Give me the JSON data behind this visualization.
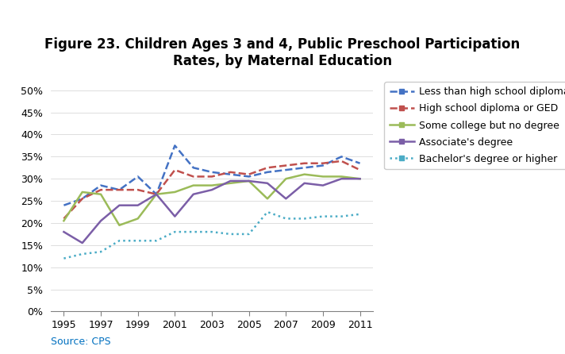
{
  "title": "Figure 23. Children Ages 3 and 4, Public Preschool Participation\nRates, by Maternal Education",
  "source": "Source: CPS",
  "years": [
    1995,
    1996,
    1997,
    1998,
    1999,
    2000,
    2001,
    2002,
    2003,
    2004,
    2005,
    2006,
    2007,
    2008,
    2009,
    2010,
    2011
  ],
  "series": [
    {
      "label": "Less than high school diploma",
      "color": "#4472C4",
      "linestyle": "--",
      "linewidth": 1.8,
      "values": [
        0.24,
        0.255,
        0.285,
        0.275,
        0.305,
        0.265,
        0.375,
        0.325,
        0.315,
        0.31,
        0.305,
        0.315,
        0.32,
        0.325,
        0.33,
        0.35,
        0.335
      ]
    },
    {
      "label": "High school diploma or GED",
      "color": "#C0504D",
      "linestyle": "--",
      "linewidth": 1.8,
      "values": [
        0.21,
        0.255,
        0.275,
        0.275,
        0.275,
        0.265,
        0.32,
        0.305,
        0.305,
        0.315,
        0.31,
        0.325,
        0.33,
        0.335,
        0.335,
        0.34,
        0.32
      ]
    },
    {
      "label": "Some college but no degree",
      "color": "#9BBB59",
      "linestyle": "-",
      "linewidth": 1.8,
      "values": [
        0.205,
        0.27,
        0.265,
        0.195,
        0.21,
        0.265,
        0.27,
        0.285,
        0.285,
        0.29,
        0.295,
        0.255,
        0.3,
        0.31,
        0.305,
        0.305,
        0.3
      ]
    },
    {
      "label": "Associate's degree",
      "color": "#7B5EA7",
      "linestyle": "-",
      "linewidth": 1.8,
      "values": [
        0.18,
        0.155,
        0.205,
        0.24,
        0.24,
        0.265,
        0.215,
        0.265,
        0.275,
        0.295,
        0.295,
        0.29,
        0.255,
        0.29,
        0.285,
        0.3,
        0.3
      ]
    },
    {
      "label": "Bachelor's degree or higher",
      "color": "#4BACC6",
      "linestyle": ":",
      "linewidth": 1.8,
      "values": [
        0.12,
        0.13,
        0.135,
        0.16,
        0.16,
        0.16,
        0.18,
        0.18,
        0.18,
        0.175,
        0.175,
        0.225,
        0.21,
        0.21,
        0.215,
        0.215,
        0.22
      ]
    }
  ],
  "ylim": [
    0,
    0.52
  ],
  "yticks": [
    0.0,
    0.05,
    0.1,
    0.15,
    0.2,
    0.25,
    0.3,
    0.35,
    0.4,
    0.45,
    0.5
  ],
  "xticks": [
    1995,
    1997,
    1999,
    2001,
    2003,
    2005,
    2007,
    2009,
    2011
  ],
  "background_color": "#FFFFFF",
  "title_fontsize": 12,
  "legend_fontsize": 9,
  "source_color": "#0070C0",
  "source_fontsize": 9
}
